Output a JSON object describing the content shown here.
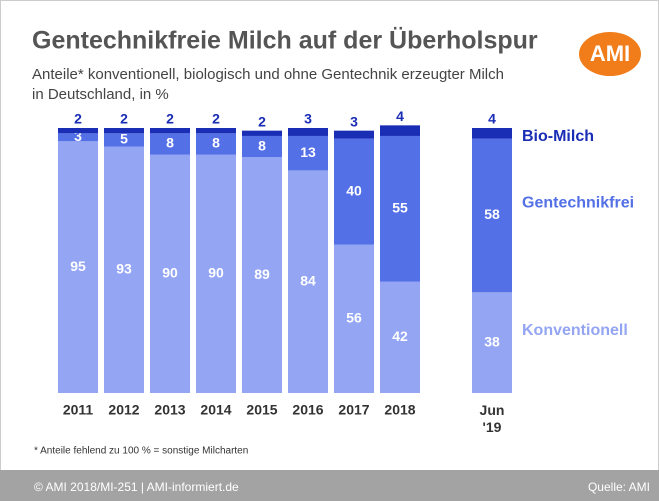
{
  "chart_data": {
    "type": "stacked_bar",
    "title": "Gentechnikfreie Milch auf der Überholspur",
    "subtitle": [
      "Anteile* konventionell, biologisch und ohne Gentechnik erzeugter Milch",
      "in Deutschland, in %"
    ],
    "logo": "AMI",
    "categories": [
      "2011",
      "2012",
      "2013",
      "2014",
      "2015",
      "2016",
      "2017",
      "2018",
      "Jun '19"
    ],
    "series": [
      {
        "name": "Konventionell",
        "color": "#93a5f3",
        "values": [
          95,
          93,
          90,
          90,
          89,
          84,
          56,
          42,
          38
        ]
      },
      {
        "name": "Gentechnikfrei",
        "color": "#5370e6",
        "values": [
          3,
          5,
          8,
          8,
          8,
          13,
          40,
          55,
          58
        ]
      },
      {
        "name": "Bio-Milch",
        "color": "#1a2db5",
        "values": [
          2,
          2,
          2,
          2,
          2,
          3,
          3,
          4,
          4
        ]
      }
    ],
    "ylim": [
      0,
      100
    ],
    "footnote": "* Anteile fehlend zu 100 % = sonstige Milcharten",
    "footer_left": "© AMI 2018/MI-251 | AMI-informiert.de",
    "footer_right": "Quelle: AMI"
  }
}
